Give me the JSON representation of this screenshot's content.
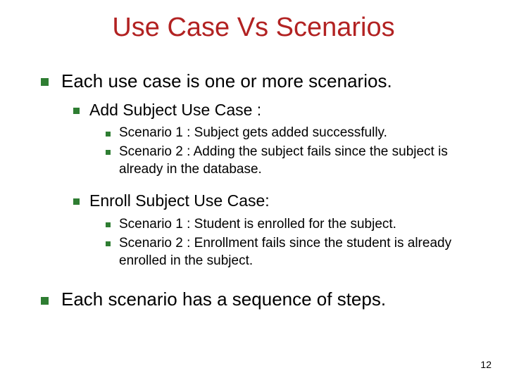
{
  "colors": {
    "title": "#b22222",
    "body": "#000000",
    "bullet": "#2e7d32",
    "pagenum": "#000000"
  },
  "title": "Use Case Vs Scenarios",
  "l1a": "Each use case is one or more scenarios.",
  "l2a": "Add Subject Use Case :",
  "l3a1": "Scenario 1 : Subject gets added successfully.",
  "l3a2": "Scenario 2 : Adding the subject fails since the subject is already in the database.",
  "l2b": "Enroll  Subject Use Case:",
  "l3b1": "Scenario 1 : Student is enrolled for the subject.",
  "l3b2": "Scenario 2 : Enrollment fails since the student is already enrolled in the subject.",
  "l1b": "Each scenario has a sequence of steps.",
  "page_number": "12"
}
